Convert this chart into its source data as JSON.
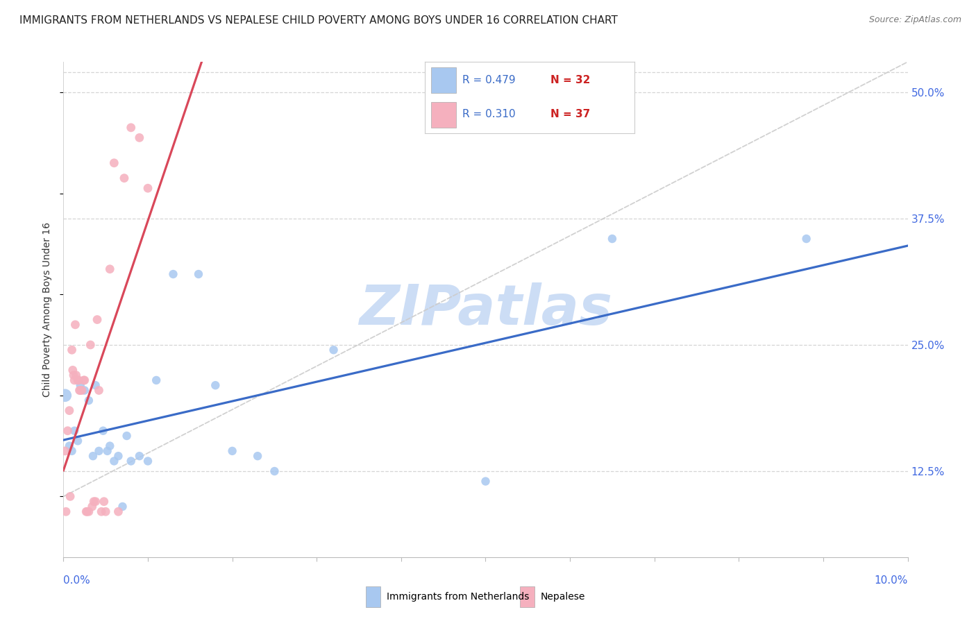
{
  "title": "IMMIGRANTS FROM NETHERLANDS VS NEPALESE CHILD POVERTY AMONG BOYS UNDER 16 CORRELATION CHART",
  "source": "Source: ZipAtlas.com",
  "ylabel": "Child Poverty Among Boys Under 16",
  "xmin": 0.0,
  "xmax": 10.0,
  "ymin": 4.0,
  "ymax": 53.0,
  "yticks": [
    12.5,
    25.0,
    37.5,
    50.0
  ],
  "ytick_labels": [
    "12.5%",
    "25.0%",
    "37.5%",
    "50.0%"
  ],
  "legend1_r": "0.479",
  "legend1_n": "32",
  "legend2_r": "0.310",
  "legend2_n": "37",
  "legend1_label": "Immigrants from Netherlands",
  "legend2_label": "Nepalese",
  "blue_scatter_x": [
    0.02,
    0.07,
    0.1,
    0.13,
    0.17,
    0.2,
    0.25,
    0.3,
    0.35,
    0.38,
    0.42,
    0.47,
    0.52,
    0.55,
    0.6,
    0.65,
    0.7,
    0.75,
    0.8,
    0.9,
    1.0,
    1.1,
    1.3,
    1.6,
    1.8,
    2.0,
    2.3,
    2.5,
    3.2,
    5.0,
    6.5,
    8.8
  ],
  "blue_scatter_y": [
    20.0,
    15.0,
    14.5,
    16.5,
    15.5,
    21.0,
    20.5,
    19.5,
    14.0,
    21.0,
    14.5,
    16.5,
    14.5,
    15.0,
    13.5,
    14.0,
    9.0,
    16.0,
    13.5,
    14.0,
    13.5,
    21.5,
    32.0,
    32.0,
    21.0,
    14.5,
    14.0,
    12.5,
    24.5,
    11.5,
    35.5,
    35.5
  ],
  "blue_scatter_size": [
    180,
    80,
    80,
    80,
    80,
    80,
    80,
    80,
    80,
    80,
    80,
    80,
    80,
    80,
    80,
    80,
    80,
    80,
    80,
    80,
    80,
    80,
    80,
    80,
    80,
    80,
    80,
    80,
    80,
    80,
    80,
    80
  ],
  "pink_scatter_x": [
    0.02,
    0.03,
    0.05,
    0.07,
    0.08,
    0.1,
    0.11,
    0.12,
    0.13,
    0.14,
    0.15,
    0.17,
    0.18,
    0.19,
    0.2,
    0.22,
    0.24,
    0.25,
    0.27,
    0.28,
    0.3,
    0.32,
    0.34,
    0.36,
    0.38,
    0.4,
    0.42,
    0.45,
    0.48,
    0.5,
    0.55,
    0.6,
    0.65,
    0.72,
    0.8,
    0.9,
    1.0
  ],
  "pink_scatter_y": [
    14.5,
    8.5,
    16.5,
    18.5,
    10.0,
    24.5,
    22.5,
    22.0,
    21.5,
    27.0,
    22.0,
    21.5,
    21.5,
    20.5,
    20.5,
    20.5,
    21.5,
    21.5,
    8.5,
    8.5,
    8.5,
    25.0,
    9.0,
    9.5,
    9.5,
    27.5,
    20.5,
    8.5,
    9.5,
    8.5,
    32.5,
    43.0,
    8.5,
    41.5,
    46.5,
    45.5,
    40.5
  ],
  "blue_dot_color": "#a8c8f0",
  "pink_dot_color": "#f5b0be",
  "blue_line_color": "#3a6bc7",
  "pink_line_color": "#d9485a",
  "ref_color": "#cccccc",
  "watermark_color": "#ccddf5",
  "title_color": "#222222",
  "right_tick_color": "#4169e1",
  "bottom_tick_color": "#4169e1",
  "r_text_color": "#3a6bc7",
  "n_text_color": "#cc2222",
  "legend_box_color": "#a8c8f0",
  "legend_box2_color": "#f5b0be"
}
